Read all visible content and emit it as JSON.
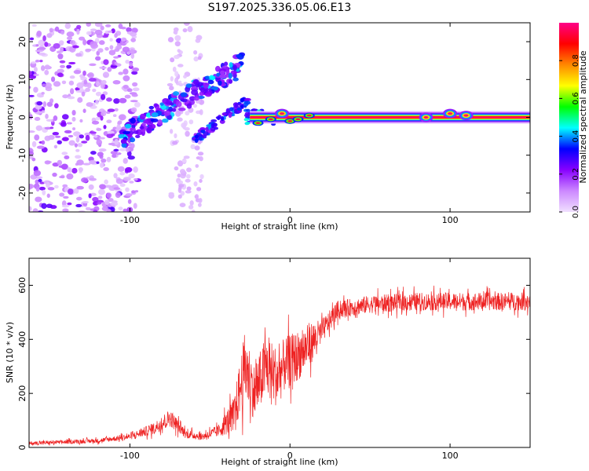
{
  "figure_title": "S197.2025.336.05.06.E13",
  "chart_data": [
    {
      "type": "heatmap",
      "name": "spectrogram",
      "xlabel": "Height of straight line (km)",
      "ylabel": "Frequency (Hz)",
      "xlim": [
        -163,
        150
      ],
      "ylim": [
        -25,
        25
      ],
      "xticks": [
        -100,
        0,
        100
      ],
      "yticks": [
        -20,
        -10,
        0,
        10,
        20
      ],
      "colorbar": {
        "label": "Normalized spectral amplitude",
        "range": [
          0,
          1
        ],
        "ticks": [
          "0.0",
          "0.2",
          "0.4",
          "0.6",
          "0.8"
        ],
        "tick_values": [
          0.0,
          0.2,
          0.4,
          0.6,
          0.8
        ],
        "colors": [
          "#f0e0ff",
          "#cc88ff",
          "#8800ff",
          "#0000ff",
          "#00ffff",
          "#00ff00",
          "#ffff00",
          "#ff8800",
          "#ff0000",
          "#ff0088"
        ]
      },
      "features": {
        "noise_region_x": [
          -163,
          -100
        ],
        "rising_branch": {
          "x": [
            -105,
            -30
          ],
          "freq": [
            -5,
            14
          ]
        },
        "second_branch": {
          "x": [
            -60,
            -25
          ],
          "freq": [
            -6,
            5
          ]
        },
        "steady_tone": {
          "x": [
            -25,
            150
          ],
          "freq": 0,
          "amplitude": 1.0
        },
        "tone_blips": [
          {
            "x": -5,
            "freq": 1
          },
          {
            "x": 85,
            "freq": 0
          },
          {
            "x": 100,
            "freq": 1
          },
          {
            "x": 110,
            "freq": 0.5
          }
        ]
      }
    },
    {
      "type": "line",
      "name": "snr",
      "xlabel": "Height of straight line (km)",
      "ylabel": "SNR (10 * v/v)",
      "xlim": [
        -163,
        150
      ],
      "ylim": [
        0,
        700
      ],
      "xticks": [
        -100,
        0,
        100
      ],
      "yticks": [
        0,
        200,
        400,
        600
      ],
      "line_color": "#ee2222",
      "envelope_x": [
        -163,
        -120,
        -100,
        -85,
        -75,
        -65,
        -55,
        -45,
        -35,
        -28,
        -22,
        -15,
        -8,
        -3,
        5,
        12,
        20,
        30,
        50,
        80,
        110,
        150
      ],
      "envelope_mean": [
        15,
        25,
        40,
        70,
        110,
        50,
        40,
        60,
        120,
        300,
        200,
        300,
        260,
        310,
        340,
        380,
        430,
        510,
        530,
        540,
        540,
        540
      ],
      "envelope_spread": [
        12,
        15,
        20,
        40,
        60,
        30,
        25,
        40,
        120,
        250,
        180,
        220,
        200,
        180,
        170,
        150,
        80,
        60,
        60,
        60,
        60,
        60
      ]
    }
  ]
}
